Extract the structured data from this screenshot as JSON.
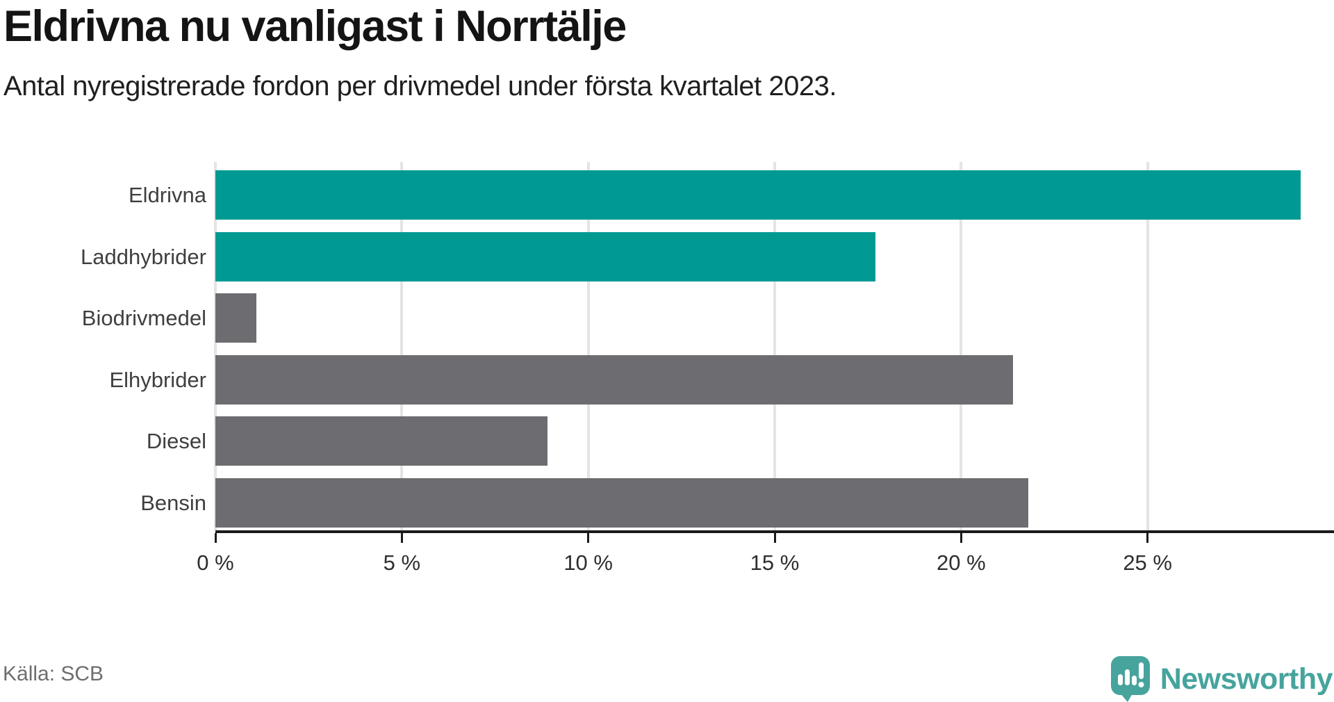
{
  "header": {
    "title": "Eldrivna nu vanligast i Norrtälje",
    "subtitle": "Antal nyregistrerade fordon per drivmedel under första kvartalet 2023."
  },
  "chart_data": {
    "type": "bar",
    "orientation": "horizontal",
    "title": "Eldrivna nu vanligast i Norrtälje",
    "subtitle": "Antal nyregistrerade fordon per drivmedel under första kvartalet 2023.",
    "categories": [
      "Eldrivna",
      "Laddhybrider",
      "Biodrivmedel",
      "Elhybrider",
      "Diesel",
      "Bensin"
    ],
    "values": [
      29.1,
      17.7,
      1.1,
      21.4,
      8.9,
      21.8
    ],
    "unit": "%",
    "bar_colors": [
      "#009a93",
      "#009a93",
      "#6d6d71",
      "#6d6d71",
      "#6d6d71",
      "#6d6d71"
    ],
    "xlabel": "",
    "ylabel": "",
    "xlim": [
      0,
      30
    ],
    "xticks": [
      0,
      5,
      10,
      15,
      20,
      25
    ],
    "xtick_labels": [
      "0 %",
      "5 %",
      "10 %",
      "15 %",
      "20 %",
      "25 %"
    ],
    "grid": "vertical-only",
    "legend": "none"
  },
  "footer": {
    "source": "Källa: SCB",
    "brand": "Newsworthy"
  },
  "colors": {
    "bar_teal": "#009a93",
    "bar_gray": "#6d6d71",
    "grid": "#e4e4e4",
    "axis": "#1a1a1a",
    "logo_teal": "#46a49d",
    "title_text": "#141414",
    "label_text": "#3f3f3f",
    "source_text": "#6e6e6e"
  }
}
